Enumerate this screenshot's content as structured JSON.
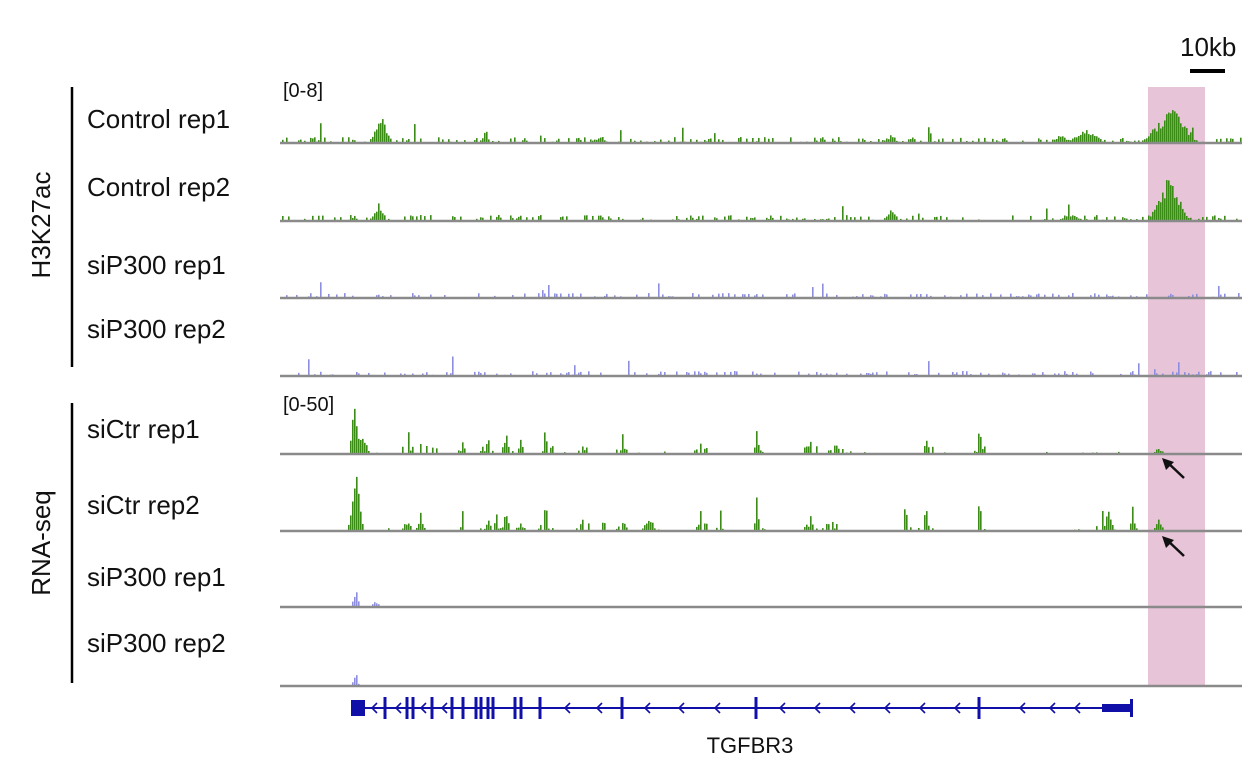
{
  "scale_bar": {
    "label": "10kb"
  },
  "groups": [
    {
      "label": "H3K27ac",
      "range_label": "[0-8]"
    },
    {
      "label": "RNA-seq",
      "range_label": "[0-50]"
    }
  ],
  "tracks": [
    {
      "label": "Control rep1",
      "group": 0,
      "color": "#3a8c17"
    },
    {
      "label": "Control rep2",
      "group": 0,
      "color": "#3a8c17"
    },
    {
      "label": "siP300 rep1",
      "group": 0,
      "color": "#8e8ee0"
    },
    {
      "label": "siP300 rep2",
      "group": 0,
      "color": "#8e8ee0"
    },
    {
      "label": "siCtr rep1",
      "group": 1,
      "color": "#3a8c17"
    },
    {
      "label": "siCtr rep2",
      "group": 1,
      "color": "#3a8c17"
    },
    {
      "label": "siP300 rep1",
      "group": 1,
      "color": "#8e8ee0"
    },
    {
      "label": "siP300 rep2",
      "group": 1,
      "color": "#8e8ee0"
    }
  ],
  "gene": {
    "name": "TGFBR3",
    "color": "#1010a8",
    "strand": "minus"
  },
  "colors": {
    "highlight": "#e8c4d8",
    "baseline": "#8a8a8a",
    "arrow": "#111111"
  }
}
